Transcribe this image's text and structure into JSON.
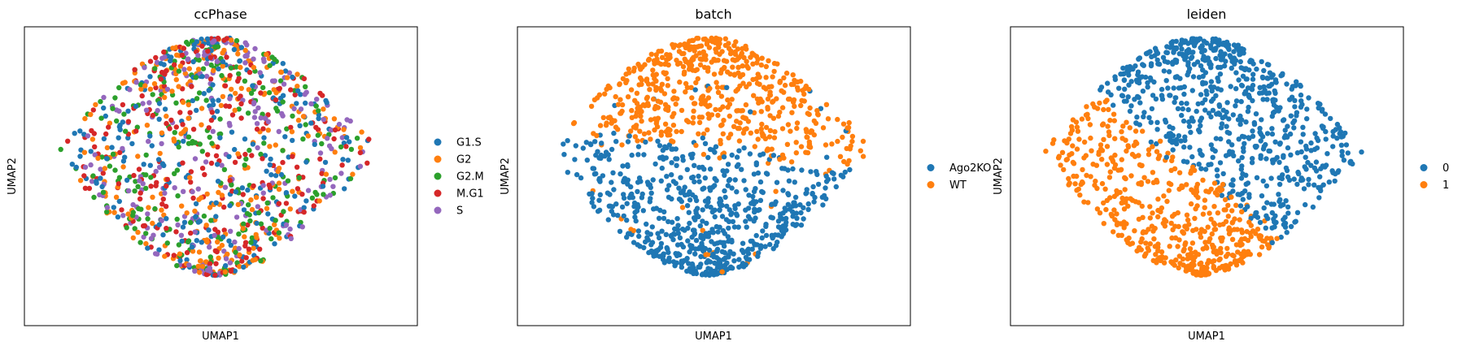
{
  "palette": {
    "blue": "#1f77b4",
    "orange": "#ff7f0e",
    "green": "#2ca02c",
    "red": "#d62728",
    "purple": "#9467bd"
  },
  "chart_data": [
    {
      "type": "scatter",
      "title": "ccPhase",
      "xlabel": "UMAP1",
      "ylabel": "UMAP2",
      "grid": false,
      "ticks": false,
      "legend_position": "right",
      "legend": [
        {
          "label": "G1.S",
          "color": "#1f77b4"
        },
        {
          "label": "G2",
          "color": "#ff7f0e"
        },
        {
          "label": "G2.M",
          "color": "#2ca02c"
        },
        {
          "label": "M.G1",
          "color": "#d62728"
        },
        {
          "label": "S",
          "color": "#9467bd"
        }
      ],
      "coloring": "mixed",
      "point_count": 1200
    },
    {
      "type": "scatter",
      "title": "batch",
      "xlabel": "UMAP1",
      "ylabel": "UMAP2",
      "grid": false,
      "ticks": false,
      "legend_position": "right",
      "legend": [
        {
          "label": "Ago2KO",
          "color": "#1f77b4"
        },
        {
          "label": "WT",
          "color": "#ff7f0e"
        }
      ],
      "coloring": "horizontal-split",
      "point_count": 1200
    },
    {
      "type": "scatter",
      "title": "leiden",
      "xlabel": "UMAP1",
      "ylabel": "UMAP2",
      "grid": false,
      "ticks": false,
      "legend_position": "right",
      "legend": [
        {
          "label": "0",
          "color": "#1f77b4"
        },
        {
          "label": "1",
          "color": "#ff7f0e"
        }
      ],
      "coloring": "diagonal-split",
      "point_count": 1200
    }
  ]
}
